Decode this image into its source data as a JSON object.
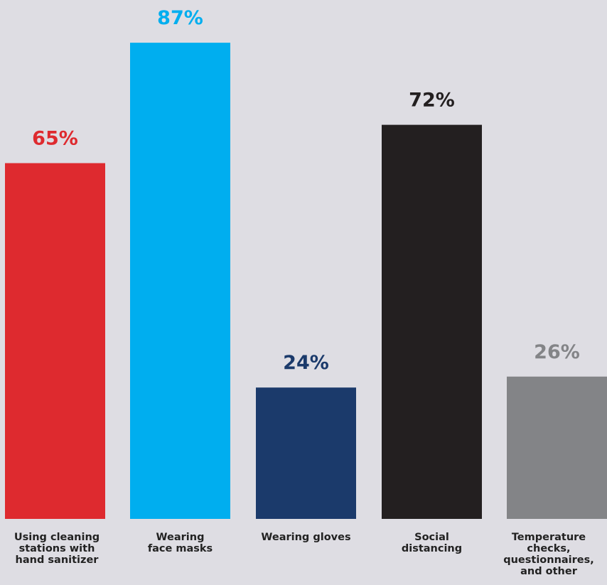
{
  "chart_data": {
    "type": "bar",
    "categories": [
      "Using cleaning stations with hand sanitizer",
      "Wearing face masks",
      "Wearing gloves",
      "Social distancing",
      "Temperature checks, questionnaires, and other"
    ],
    "category_label_lines": [
      [
        "Using cleaning",
        "stations with",
        "hand sanitizer"
      ],
      [
        "Wearing",
        "face masks"
      ],
      [
        "Wearing gloves"
      ],
      [
        "Social",
        "distancing"
      ],
      [
        "Temperature",
        "checks,",
        "questionnaires,",
        "and other"
      ]
    ],
    "values": [
      65,
      87,
      24,
      72,
      26
    ],
    "value_labels": [
      "65%",
      "87%",
      "24%",
      "72%",
      "26%"
    ],
    "colors": [
      "#de2a2f",
      "#00aeef",
      "#1b3a6b",
      "#231f20",
      "#838487"
    ],
    "title": "",
    "xlabel": "",
    "ylabel": "",
    "ylim": [
      0,
      100
    ],
    "grid": false,
    "legend": "none"
  }
}
